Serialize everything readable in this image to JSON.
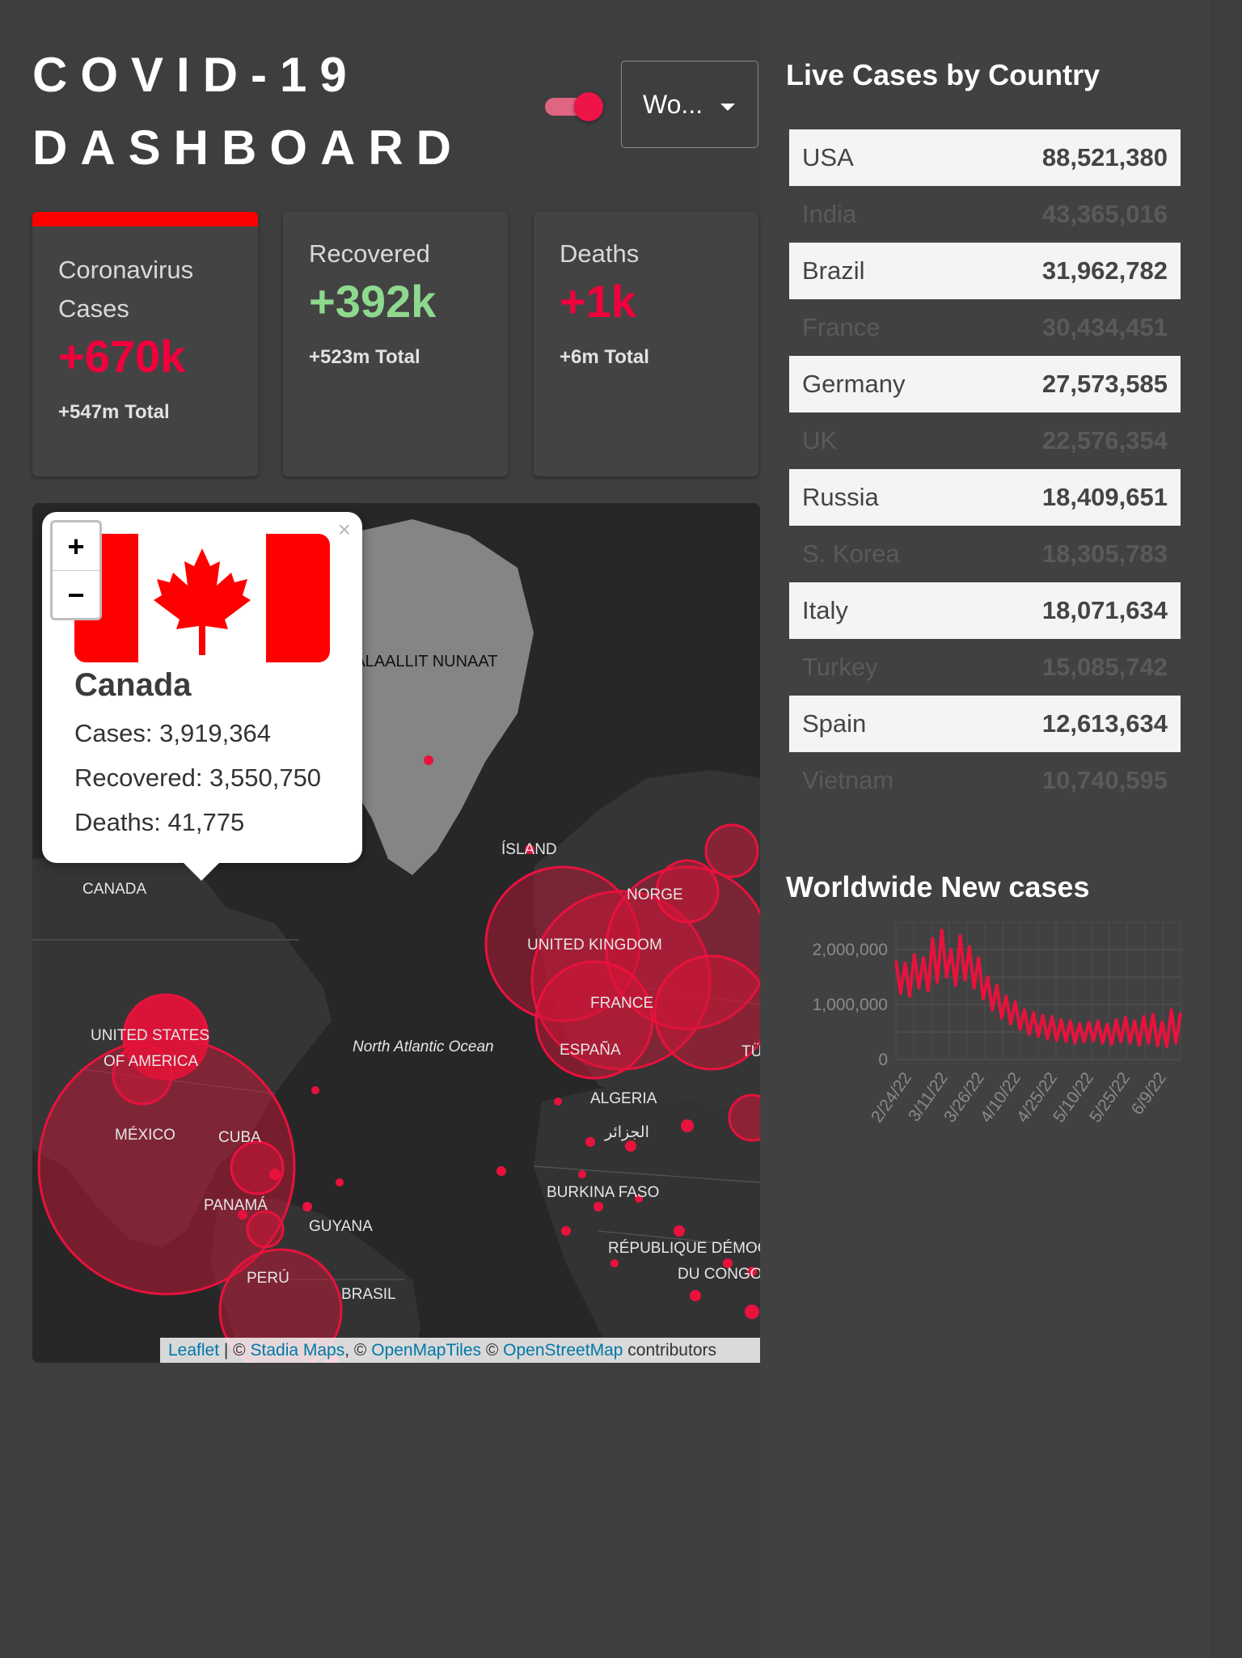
{
  "header": {
    "title_line1": "COVID-19",
    "title_line2": "DASHBOARD",
    "region_select": "Wo..."
  },
  "colors": {
    "accent": "#f2003c",
    "recovered": "#8fd98f",
    "active_bar": "#fd0000"
  },
  "cards": [
    {
      "label": "Coronavirus Cases",
      "value": "+670k",
      "total": "+547m Total"
    },
    {
      "label": "Recovered",
      "value": "+392k",
      "total": "+523m Total"
    },
    {
      "label": "Deaths",
      "value": "+1k",
      "total": "+6m Total"
    }
  ],
  "map": {
    "popup": {
      "country": "Canada",
      "cases": "Cases: 3,919,364",
      "recovered": "Recovered: 3,550,750",
      "deaths": "Deaths: 41,775"
    },
    "zoom_in": "+",
    "zoom_out": "−",
    "close": "×",
    "labels": {
      "greenland": "KALAALLIT NUNAAT",
      "iceland": "ÍSLAND",
      "canada": "CANADA",
      "usa": "UNITED STATES",
      "usa2": "OF AMERICA",
      "mexico": "MÉXICO",
      "cuba": "CUBA",
      "panama": "PANAMÁ",
      "guyana": "GUYANA",
      "peru": "PERÚ",
      "brasil": "BRASIL",
      "ocean": "North Atlantic Ocean",
      "norge": "NORGE",
      "uk": "UNITED KINGDOM",
      "france": "FRANCE",
      "espana": "ESPAÑA",
      "algeria": "ALGERIA",
      "algeria_ar": "الجزائر",
      "burkina": "BURKINA FASO",
      "drc": "RÉPUBLIQUE DÉMOCRATIQUE",
      "congo": "DU CONGO",
      "turkiye": "TÜ"
    },
    "attribution": {
      "leaflet": "Leaflet",
      "sep1": " | © ",
      "stadia": "Stadia Maps",
      "sep2": ", © ",
      "omt": "OpenMapTiles",
      "sep3": " © ",
      "osm": "OpenStreetMap",
      "tail": " contributors"
    }
  },
  "live_cases": {
    "title": "Live Cases by Country",
    "rows": [
      {
        "country": "USA",
        "cases": "88,521,380"
      },
      {
        "country": "India",
        "cases": "43,365,016"
      },
      {
        "country": "Brazil",
        "cases": "31,962,782"
      },
      {
        "country": "France",
        "cases": "30,434,451"
      },
      {
        "country": "Germany",
        "cases": "27,573,585"
      },
      {
        "country": "UK",
        "cases": "22,576,354"
      },
      {
        "country": "Russia",
        "cases": "18,409,651"
      },
      {
        "country": "S. Korea",
        "cases": "18,305,783"
      },
      {
        "country": "Italy",
        "cases": "18,071,634"
      },
      {
        "country": "Turkey",
        "cases": "15,085,742"
      },
      {
        "country": "Spain",
        "cases": "12,613,634"
      },
      {
        "country": "Vietnam",
        "cases": "10,740,595"
      }
    ]
  },
  "worldwide": {
    "title": "Worldwide New cases"
  },
  "chart_data": {
    "type": "line",
    "title": "Worldwide New cases",
    "yticks": [
      "2,000,000",
      "1,000,000",
      "0"
    ],
    "ylim": [
      0,
      2500000
    ],
    "xticks": [
      "2/24/22",
      "3/11/22",
      "3/26/22",
      "4/10/22",
      "4/25/22",
      "5/10/22",
      "5/25/22",
      "6/9/22"
    ],
    "values": [
      1800000,
      1200000,
      1750000,
      1150000,
      1900000,
      1300000,
      1850000,
      1250000,
      2200000,
      1400000,
      2350000,
      1500000,
      2000000,
      1350000,
      2250000,
      1450000,
      2050000,
      1300000,
      1850000,
      1100000,
      1500000,
      900000,
      1350000,
      750000,
      1150000,
      650000,
      1050000,
      550000,
      900000,
      450000,
      850000,
      420000,
      800000,
      380000,
      780000,
      350000,
      720000,
      330000,
      700000,
      300000,
      650000,
      320000,
      680000,
      340000,
      700000,
      300000,
      640000,
      280000,
      720000,
      320000,
      760000,
      300000,
      700000,
      260000,
      780000,
      300000,
      820000,
      250000,
      680000,
      230000,
      900000,
      300000,
      850000
    ]
  }
}
